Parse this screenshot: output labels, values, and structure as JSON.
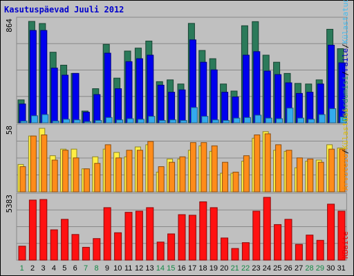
{
  "chart_data": {
    "type": "bar",
    "title": "Kasutuspäevad Juuli 2012",
    "categories": [
      "1",
      "2",
      "3",
      "4",
      "5",
      "6",
      "7",
      "8",
      "9",
      "10",
      "11",
      "12",
      "13",
      "14",
      "15",
      "16",
      "17",
      "18",
      "19",
      "20",
      "21",
      "22",
      "23",
      "24",
      "25",
      "26",
      "27",
      "28",
      "29",
      "30",
      "31"
    ],
    "weekend_days": [
      "1",
      "7",
      "8",
      "14",
      "15",
      "21",
      "22",
      "28",
      "29"
    ],
    "panels": [
      {
        "max_label": "864",
        "side_labels": [
          {
            "text": "Pöördumisi",
            "color": "#339966"
          },
          {
            "text": "/",
            "color": "#000000"
          },
          {
            "text": "Faile",
            "color": "#0000cc"
          },
          {
            "text": "/",
            "color": "#000000"
          },
          {
            "text": "Külastatud lk",
            "color": "#44bbee"
          }
        ],
        "series": [
          {
            "name": "Pöördumisi",
            "color": "#2b7a5a",
            "values": [
              195,
              862,
              844,
              600,
              490,
              420,
              100,
              290,
              667,
              380,
              610,
              635,
              695,
              350,
              365,
              330,
              845,
              615,
              545,
              330,
              270,
              825,
              860,
              575,
              515,
              420,
              335,
              330,
              365,
              795,
              630
            ]
          },
          {
            "name": "Faile",
            "color": "#0000ee",
            "values": [
              160,
              785,
              785,
              465,
              405,
              420,
              90,
              240,
              592,
              290,
              520,
              545,
              575,
              320,
              260,
              280,
              705,
              515,
              450,
              260,
              220,
              575,
              605,
              440,
              410,
              340,
              250,
              260,
              330,
              660,
              510
            ]
          },
          {
            "name": "Külastatud lk",
            "color": "#33aaee",
            "values": [
              15,
              60,
              70,
              15,
              30,
              25,
              10,
              20,
              45,
              25,
              35,
              30,
              55,
              20,
              25,
              20,
              130,
              55,
              25,
              20,
              40,
              45,
              65,
              40,
              35,
              125,
              40,
              30,
              70,
              120,
              50
            ]
          }
        ]
      },
      {
        "max_label": "58",
        "side_labels": [
          {
            "text": "Arvuteid",
            "color": "#ff8800"
          },
          {
            "text": "/",
            "color": "#000000"
          },
          {
            "text": "Külastusi",
            "color": "#ddbb00"
          }
        ],
        "series": [
          {
            "name": "Külastusi",
            "color": "#ffee44",
            "values": [
              25,
              51,
              58,
              33,
              39,
              39,
              21,
              32,
              39,
              36,
              32,
              41,
              43,
              18,
              30,
              30,
              38,
              42,
              37,
              17,
              17,
              28,
              49,
              55,
              38,
              37,
              22,
              28,
              29,
              43,
              40
            ]
          },
          {
            "name": "Arvuteid",
            "color": "#ff8c1a",
            "values": [
              23,
              51,
              52,
              29,
              38,
              31,
              21,
              26,
              43,
              31,
              38,
              38,
              46,
              23,
              27,
              32,
              45,
              45,
              42,
              27,
              18,
              33,
              52,
              53,
              43,
              38,
              31,
              30,
              27,
              39,
              39
            ]
          }
        ]
      },
      {
        "max_label": "5383",
        "side_labels": [
          {
            "text": "KBaite",
            "color": "#ee0000"
          }
        ],
        "series": [
          {
            "name": "KBaite",
            "color": "#ff1111",
            "values": [
              1200,
              5150,
              5200,
              2600,
              3500,
              2200,
              1100,
              1850,
              4500,
              2350,
              4100,
              4200,
              4500,
              1550,
              2250,
              3900,
              3850,
              5000,
              4500,
              1900,
              1000,
              1500,
              4200,
              5383,
              3050,
              3500,
              1350,
              2150,
              1700,
              4800,
              4200
            ]
          }
        ]
      }
    ]
  }
}
